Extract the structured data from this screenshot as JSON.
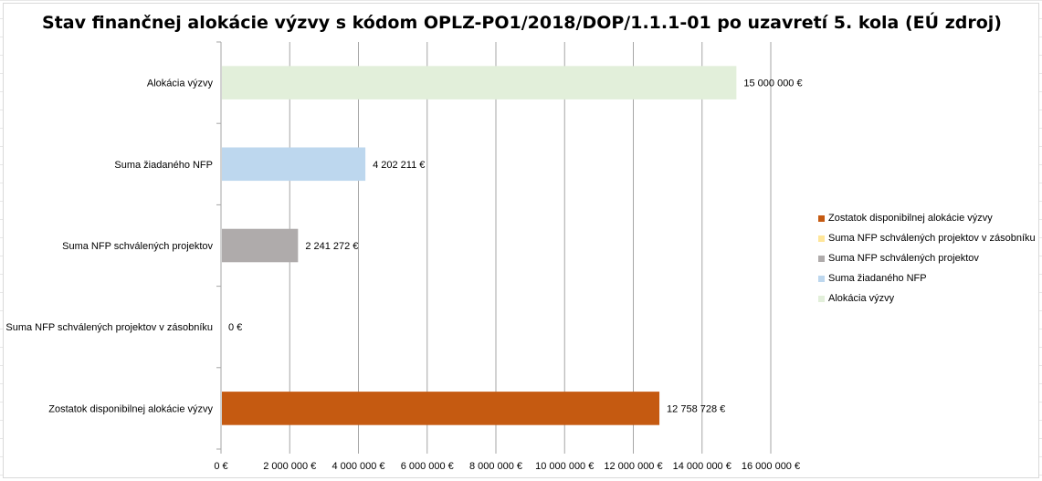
{
  "chart_data": {
    "type": "bar",
    "orientation": "horizontal",
    "title": "Stav finančnej alokácie výzvy s kódom OPLZ-PO1/2018/DOP/1.1.1-01 po uzavretí 5. kola (EÚ zdroj)",
    "categories": [
      "Alokácia výzvy",
      "Suma žiadaného NFP",
      "Suma NFP schválených projektov",
      "Suma NFP schválených projektov v zásobníku",
      "Zostatok disponibilnej alokácie výzvy"
    ],
    "values": [
      15000000,
      4202211,
      2241272,
      0,
      12758728
    ],
    "value_labels": [
      "15 000 000 €",
      "4 202 211 €",
      "2 241 272 €",
      "0 €",
      "12 758 728 €"
    ],
    "colors": [
      "#e2efda",
      "#bdd7ee",
      "#afabab",
      "#ffe699",
      "#c55a11"
    ],
    "xlim": [
      0,
      16000000
    ],
    "x_ticks": [
      0,
      2000000,
      4000000,
      6000000,
      8000000,
      10000000,
      12000000,
      14000000,
      16000000
    ],
    "x_tick_labels": [
      "0 €",
      "2 000 000 €",
      "4 000 000 €",
      "6 000 000 €",
      "8 000 000 €",
      "10 000 000 €",
      "12 000 000 €",
      "14 000 000 €",
      "16 000 000 €"
    ],
    "grid": "vertical major gridlines",
    "legend": {
      "placement": "right",
      "entries": [
        {
          "label": "Zostatok disponibilnej alokácie výzvy",
          "color": "#c55a11"
        },
        {
          "label": "Suma NFP schválených projektov v zásobníku",
          "color": "#ffe699"
        },
        {
          "label": "Suma NFP schválených projektov",
          "color": "#afabab"
        },
        {
          "label": "Suma žiadaného NFP",
          "color": "#bdd7ee"
        },
        {
          "label": "Alokácia výzvy",
          "color": "#e2efda"
        }
      ]
    }
  }
}
